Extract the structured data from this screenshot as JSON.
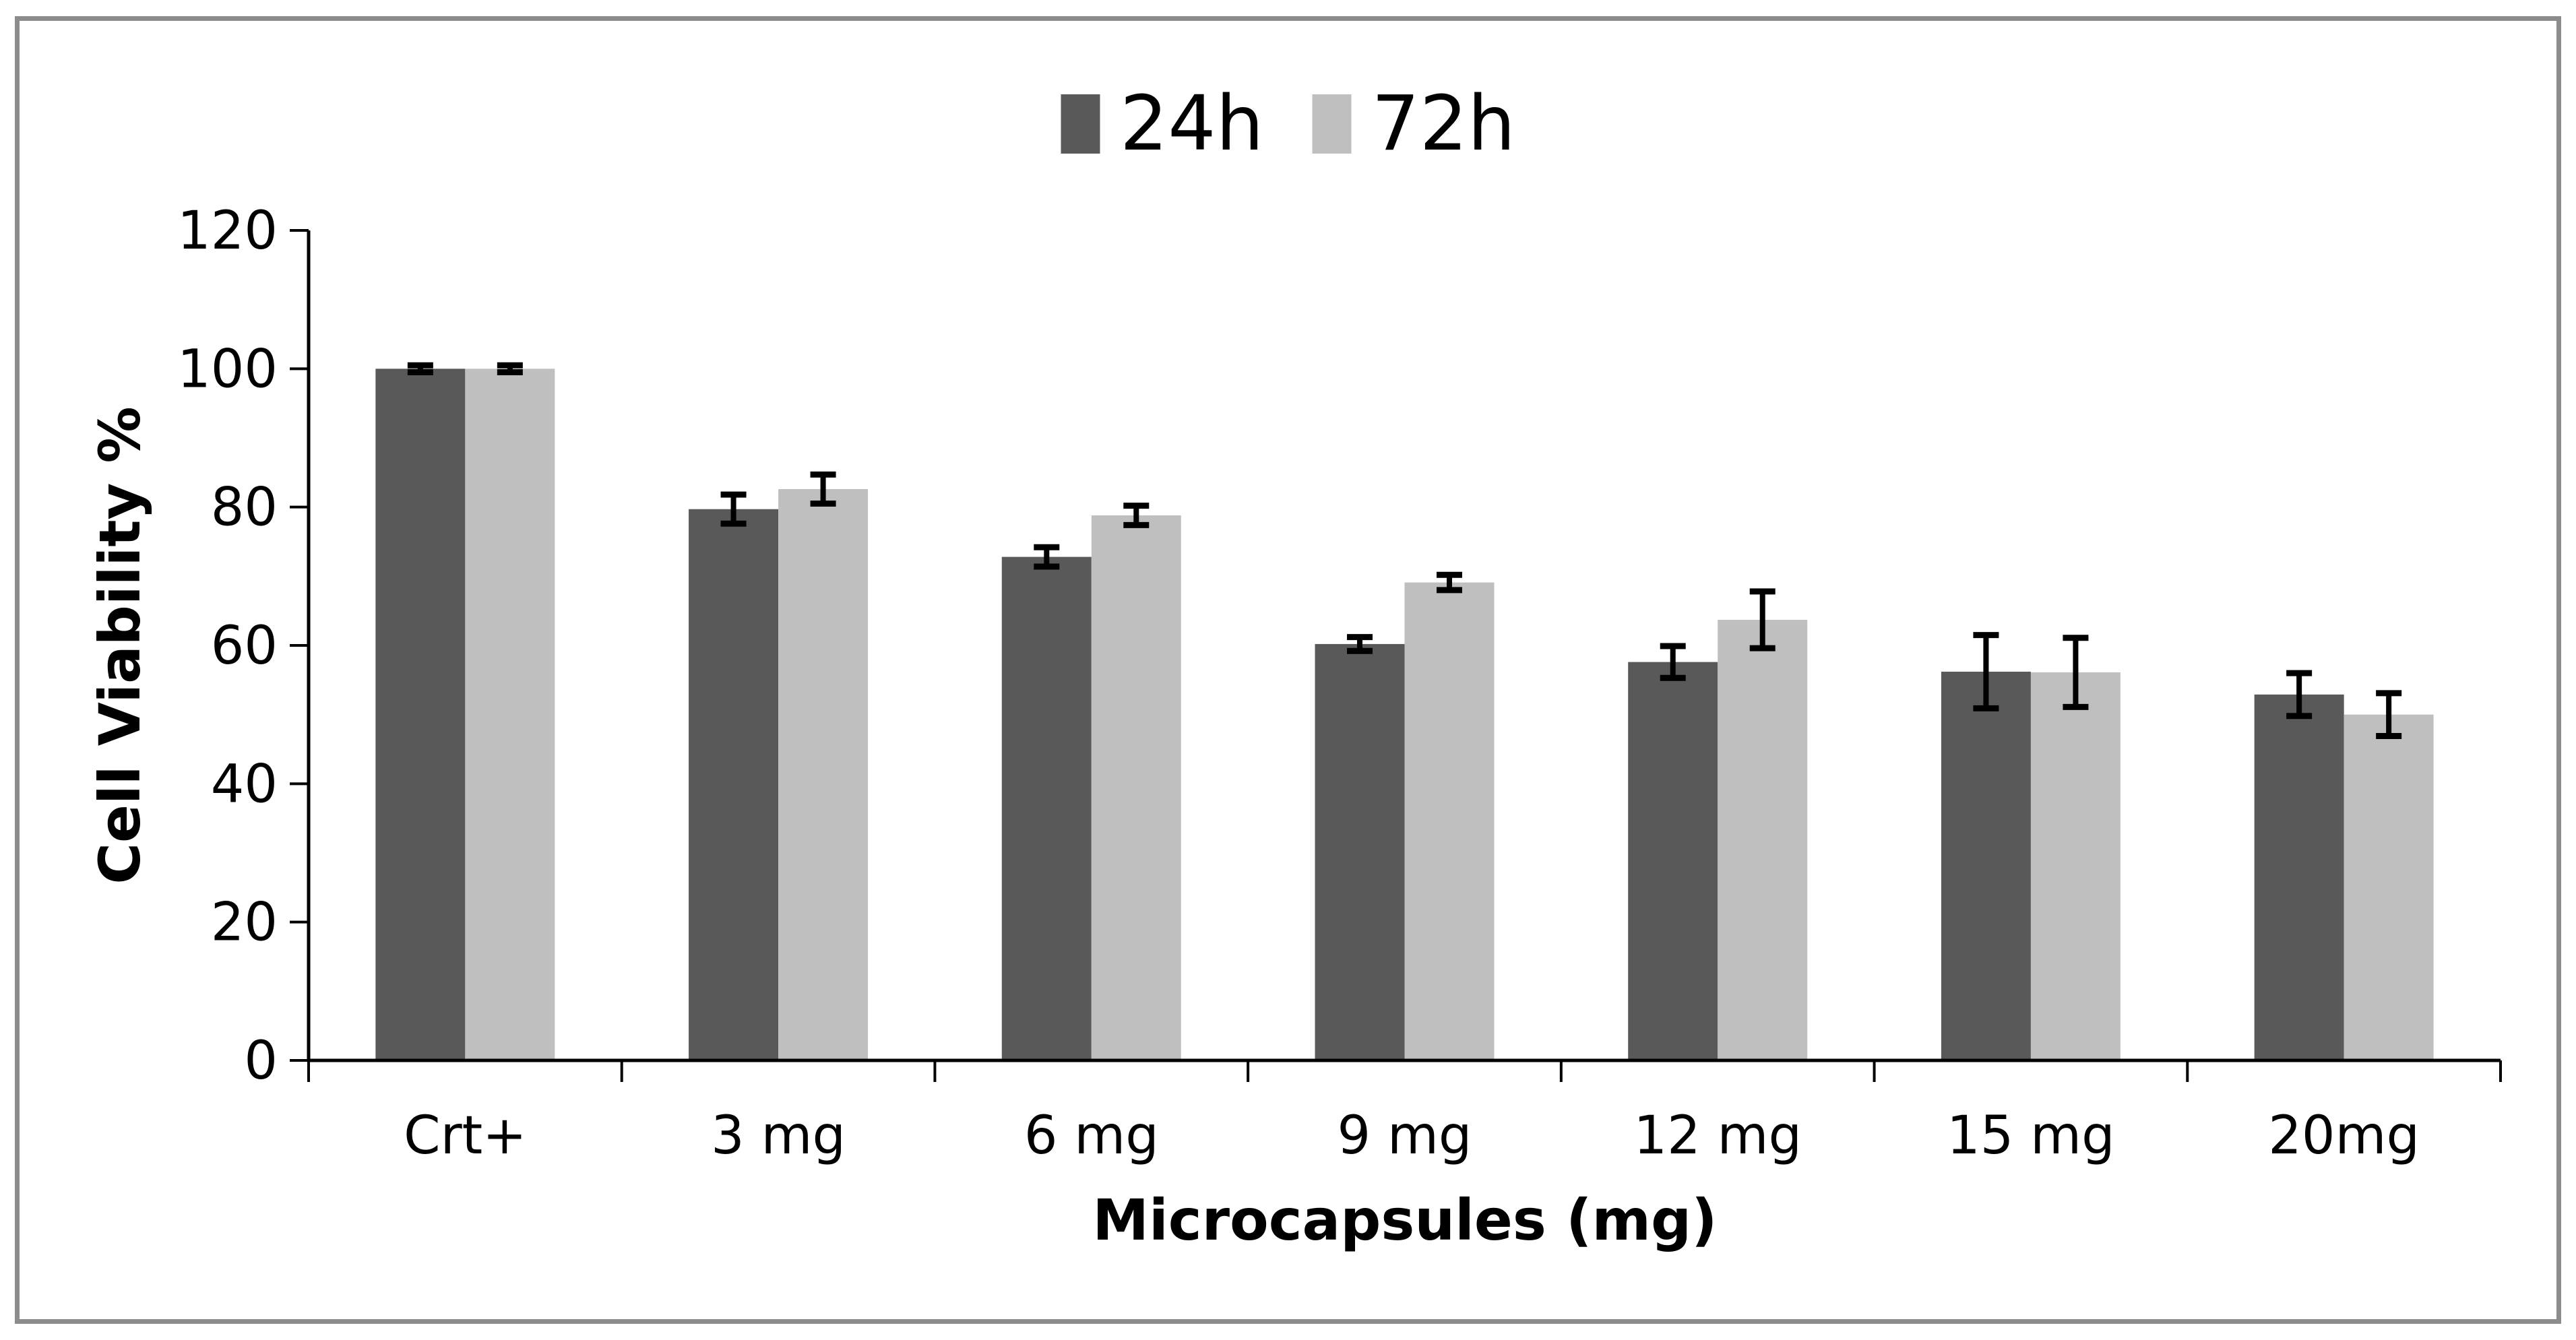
{
  "figure": {
    "border_color": "#8c8c8c",
    "background": "#ffffff"
  },
  "chart_data": {
    "type": "bar",
    "title": "",
    "categories": [
      "Crt+",
      "3 mg",
      "6 mg",
      "9 mg",
      "12 mg",
      "15 mg",
      "20mg"
    ],
    "series": [
      {
        "name": "24h",
        "color": "#595959",
        "values": [
          100,
          79.7,
          72.8,
          60.2,
          57.6,
          56.2,
          52.9
        ],
        "errors": [
          0.5,
          2.1,
          1.4,
          1.0,
          2.3,
          5.3,
          3.1
        ]
      },
      {
        "name": "72h",
        "color": "#bfbfbf",
        "values": [
          100,
          82.6,
          78.8,
          69.1,
          63.7,
          56.1,
          50.0
        ],
        "errors": [
          0.5,
          2.1,
          1.4,
          1.1,
          4.1,
          5.0,
          3.1
        ]
      }
    ],
    "xlabel": "Microcapsules (mg)",
    "ylabel": "Cell Viability %",
    "ylim": [
      0,
      120
    ],
    "ytick_step": 20,
    "yticks": [
      0,
      20,
      40,
      60,
      80,
      100,
      120
    ],
    "grid": false,
    "error_bars": true,
    "legend_position": "top-center",
    "axis_color": "#000000"
  }
}
